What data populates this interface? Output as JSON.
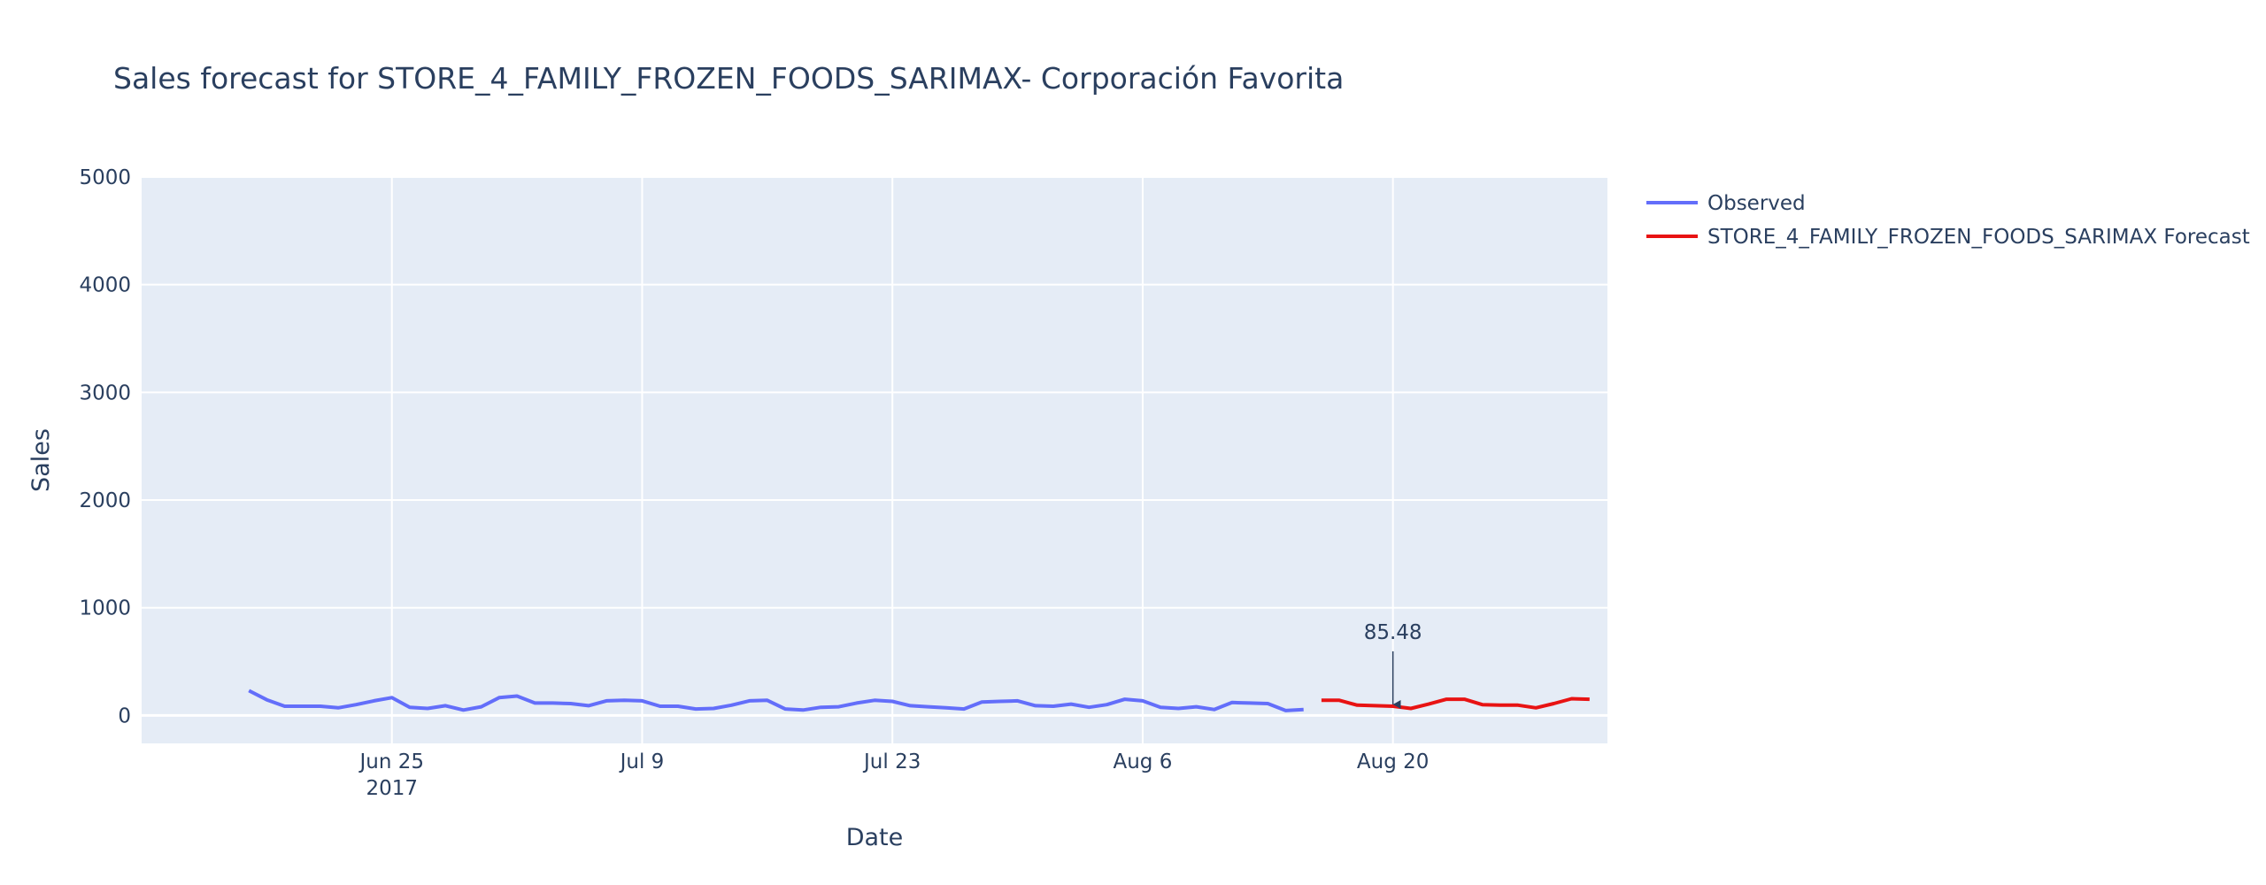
{
  "chart_data": {
    "type": "line",
    "title": "Sales forecast for STORE_4_FAMILY_FROZEN_FOODS_SARIMAX- Corporación Favorita",
    "xlabel": "Date",
    "ylabel": "Sales",
    "ylim": [
      -260,
      5000
    ],
    "xlim": [
      "2017-06-11",
      "2017-09-01"
    ],
    "y_ticks": [
      0,
      1000,
      2000,
      3000,
      4000,
      5000
    ],
    "x_ticks": [
      {
        "date": "2017-06-25",
        "label": "Jun 25",
        "sublabel": "2017"
      },
      {
        "date": "2017-07-09",
        "label": "Jul 9",
        "sublabel": ""
      },
      {
        "date": "2017-07-23",
        "label": "Jul 23",
        "sublabel": ""
      },
      {
        "date": "2017-08-06",
        "label": "Aug 6",
        "sublabel": ""
      },
      {
        "date": "2017-08-20",
        "label": "Aug 20",
        "sublabel": ""
      }
    ],
    "grid": true,
    "legend_position": "top-right",
    "series": [
      {
        "name": "Observed",
        "color": "#636efa",
        "points": [
          [
            "2017-06-17",
            230
          ],
          [
            "2017-06-18",
            145
          ],
          [
            "2017-06-19",
            85
          ],
          [
            "2017-06-20",
            85
          ],
          [
            "2017-06-21",
            85
          ],
          [
            "2017-06-22",
            70
          ],
          [
            "2017-06-23",
            100
          ],
          [
            "2017-06-24",
            135
          ],
          [
            "2017-06-25",
            165
          ],
          [
            "2017-06-26",
            75
          ],
          [
            "2017-06-27",
            65
          ],
          [
            "2017-06-28",
            90
          ],
          [
            "2017-06-29",
            50
          ],
          [
            "2017-06-30",
            80
          ],
          [
            "2017-07-01",
            165
          ],
          [
            "2017-07-02",
            180
          ],
          [
            "2017-07-03",
            115
          ],
          [
            "2017-07-04",
            115
          ],
          [
            "2017-07-05",
            110
          ],
          [
            "2017-07-06",
            90
          ],
          [
            "2017-07-07",
            135
          ],
          [
            "2017-07-08",
            140
          ],
          [
            "2017-07-09",
            135
          ],
          [
            "2017-07-10",
            85
          ],
          [
            "2017-07-11",
            85
          ],
          [
            "2017-07-12",
            60
          ],
          [
            "2017-07-13",
            65
          ],
          [
            "2017-07-14",
            95
          ],
          [
            "2017-07-15",
            135
          ],
          [
            "2017-07-16",
            140
          ],
          [
            "2017-07-17",
            60
          ],
          [
            "2017-07-18",
            50
          ],
          [
            "2017-07-19",
            75
          ],
          [
            "2017-07-20",
            80
          ],
          [
            "2017-07-21",
            115
          ],
          [
            "2017-07-22",
            140
          ],
          [
            "2017-07-23",
            130
          ],
          [
            "2017-07-24",
            90
          ],
          [
            "2017-07-25",
            80
          ],
          [
            "2017-07-26",
            70
          ],
          [
            "2017-07-27",
            60
          ],
          [
            "2017-07-28",
            125
          ],
          [
            "2017-07-29",
            130
          ],
          [
            "2017-07-30",
            135
          ],
          [
            "2017-07-31",
            90
          ],
          [
            "2017-08-01",
            85
          ],
          [
            "2017-08-02",
            105
          ],
          [
            "2017-08-03",
            75
          ],
          [
            "2017-08-04",
            100
          ],
          [
            "2017-08-05",
            150
          ],
          [
            "2017-08-06",
            135
          ],
          [
            "2017-08-07",
            75
          ],
          [
            "2017-08-08",
            65
          ],
          [
            "2017-08-09",
            80
          ],
          [
            "2017-08-10",
            55
          ],
          [
            "2017-08-11",
            120
          ],
          [
            "2017-08-12",
            115
          ],
          [
            "2017-08-13",
            110
          ],
          [
            "2017-08-14",
            45
          ],
          [
            "2017-08-15",
            55
          ]
        ]
      },
      {
        "name": "STORE_4_FAMILY_FROZEN_FOODS_SARIMAX Forecast",
        "color": "#e81313",
        "points": [
          [
            "2017-08-16",
            140
          ],
          [
            "2017-08-17",
            140
          ],
          [
            "2017-08-18",
            95
          ],
          [
            "2017-08-19",
            90
          ],
          [
            "2017-08-20",
            85.48
          ],
          [
            "2017-08-21",
            65
          ],
          [
            "2017-08-22",
            105
          ],
          [
            "2017-08-23",
            150
          ],
          [
            "2017-08-24",
            150
          ],
          [
            "2017-08-25",
            100
          ],
          [
            "2017-08-26",
            95
          ],
          [
            "2017-08-27",
            95
          ],
          [
            "2017-08-28",
            70
          ],
          [
            "2017-08-29",
            110
          ],
          [
            "2017-08-30",
            155
          ],
          [
            "2017-08-31",
            150
          ]
        ]
      }
    ],
    "annotations": [
      {
        "date": "2017-08-20",
        "value": 85.48,
        "text": "85.48"
      }
    ]
  }
}
